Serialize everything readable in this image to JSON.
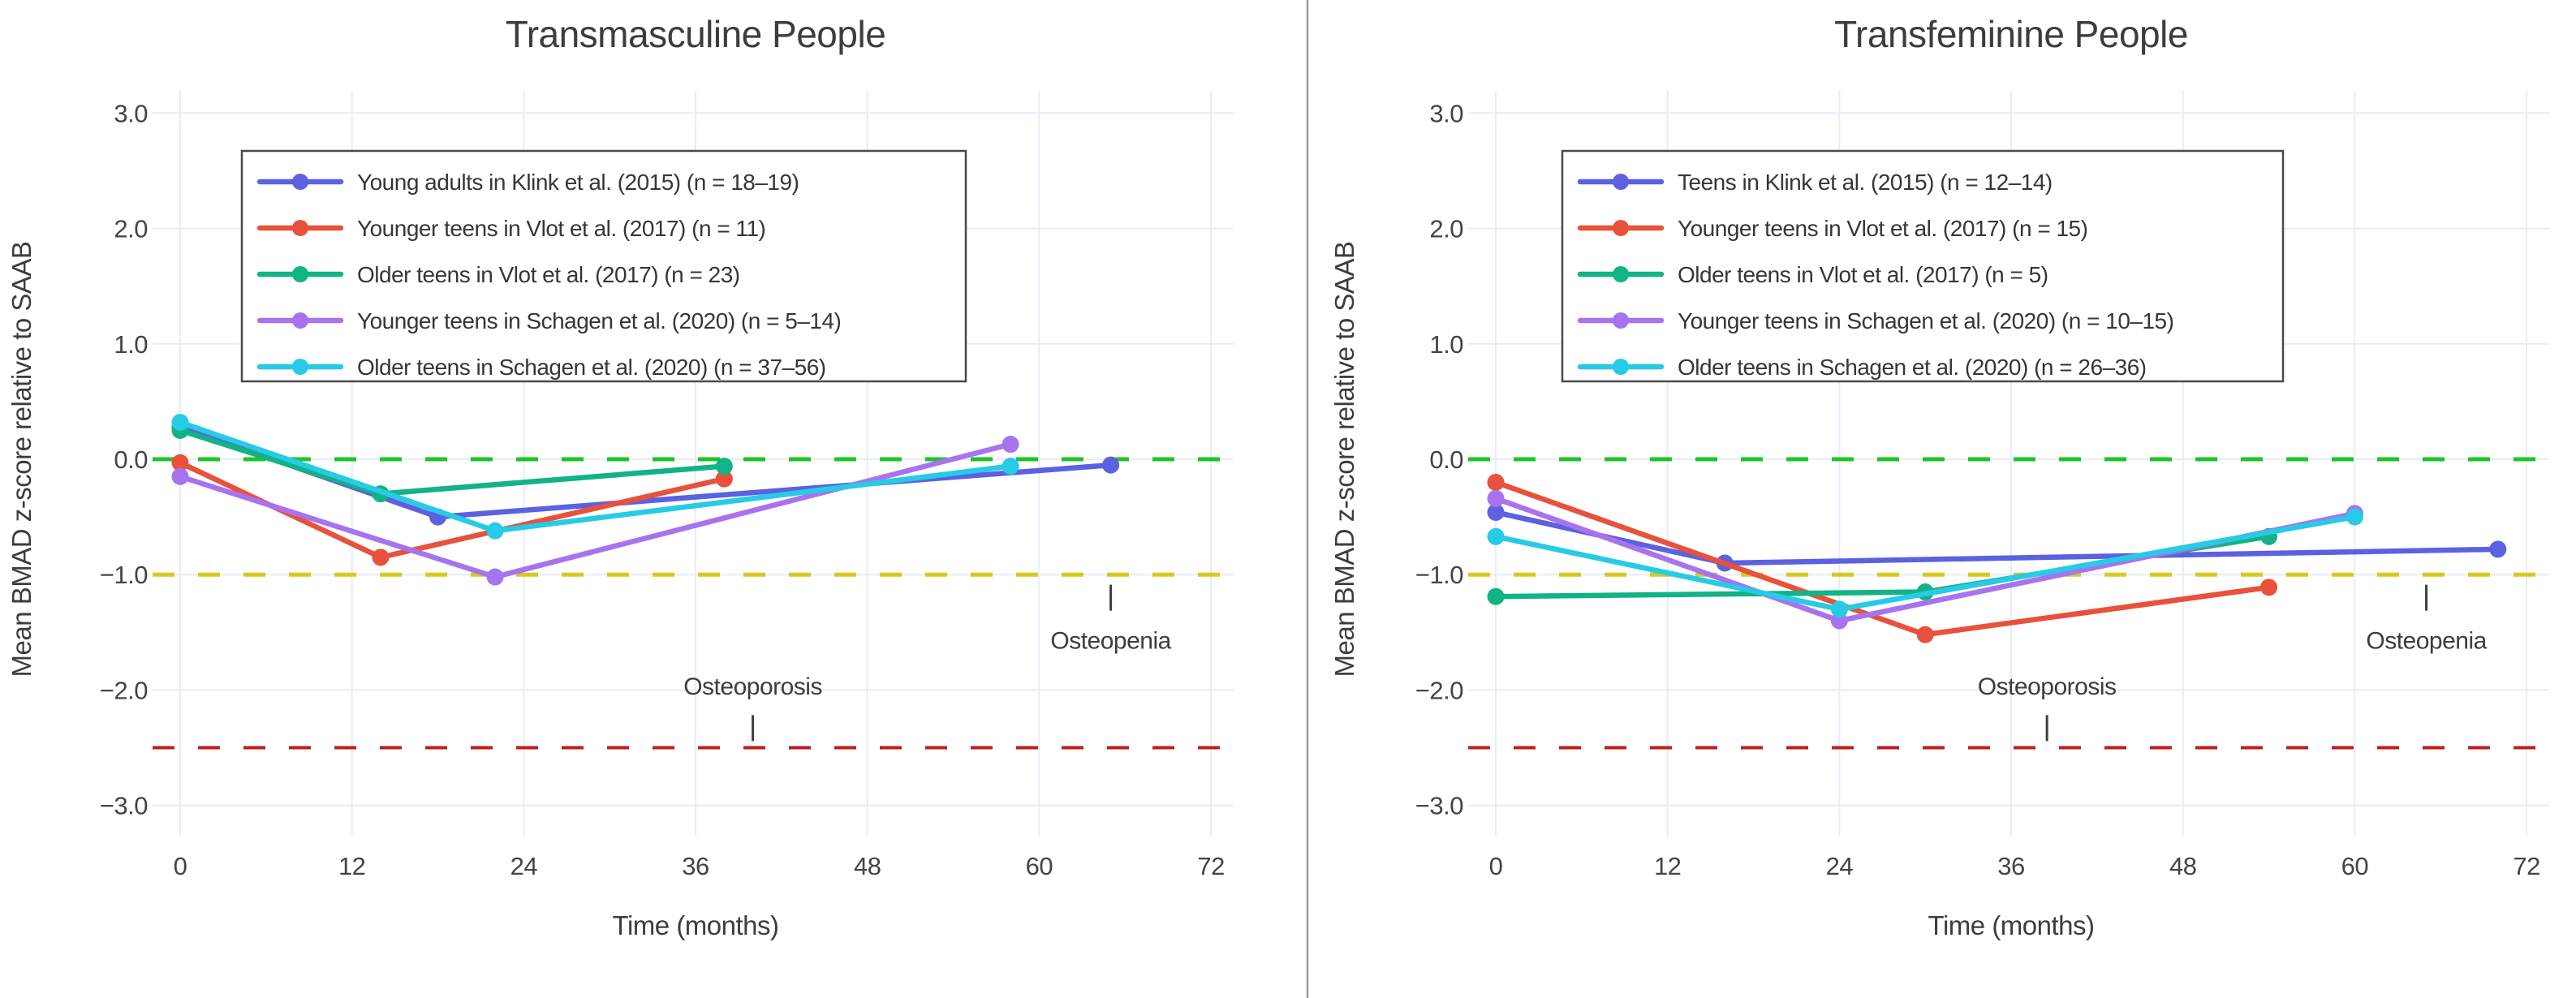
{
  "figure": {
    "background_color": "#ffffff",
    "text_color": "#3d3d3d",
    "gridline_color": "#e7ecf6",
    "divider_color": "#999999",
    "x_axis_title": "Time (months)",
    "y_axis_title": "Mean BMAD z-score relative to SAAB"
  },
  "chart_data": [
    {
      "type": "line",
      "title": "Transmasculine People",
      "xlabel": "Time (months)",
      "ylabel": "Mean BMAD z-score relative to SAAB",
      "xlim": [
        -2,
        74
      ],
      "ylim": [
        -3.25,
        3.25
      ],
      "grid": true,
      "legend_position": "upper-left-inside",
      "x_tick_values": [
        0,
        12,
        24,
        36,
        48,
        60,
        72
      ],
      "x_tick_labels": [
        "0",
        "12",
        "24",
        "36",
        "48",
        "60",
        "72"
      ],
      "y_tick_values": [
        3,
        2,
        1,
        0,
        -1,
        -2,
        -3
      ],
      "y_tick_labels": [
        "3.0",
        "2.0",
        "1.0",
        "0.0",
        "−1.0",
        "−2.0",
        "−3.0"
      ],
      "series": [
        {
          "name": "Young adults in Klink et al. (2015) (n = 18–19)",
          "color": "#5b61e0",
          "points": [
            [
              0,
              0.28
            ],
            [
              18,
              -0.5
            ],
            [
              65,
              -0.05
            ]
          ]
        },
        {
          "name": "Younger teens in Vlot et al. (2017) (n = 11)",
          "color": "#e8513b",
          "points": [
            [
              0,
              -0.03
            ],
            [
              14,
              -0.85
            ],
            [
              38,
              -0.17
            ]
          ]
        },
        {
          "name": "Older teens in Vlot et al. (2017) (n = 23)",
          "color": "#12b384",
          "points": [
            [
              0,
              0.25
            ],
            [
              14,
              -0.3
            ],
            [
              38,
              -0.06
            ]
          ]
        },
        {
          "name": "Younger teens in Schagen et al. (2020) (n = 5–14)",
          "color": "#a873ef",
          "points": [
            [
              0,
              -0.15
            ],
            [
              22,
              -1.02
            ],
            [
              58,
              0.13
            ]
          ]
        },
        {
          "name": "Older teens in Schagen et al. (2020) (n = 37–56)",
          "color": "#27cbe5",
          "points": [
            [
              0,
              0.32
            ],
            [
              22,
              -0.62
            ],
            [
              58,
              -0.06
            ]
          ]
        }
      ],
      "reference_lines": [
        {
          "value": 0.0,
          "color": "#1ec428",
          "style": "dashed"
        },
        {
          "value": -1.0,
          "color": "#d6ca1d",
          "style": "dashed"
        },
        {
          "value": -2.5,
          "color": "#c01d1d",
          "style": "dashed"
        }
      ],
      "annotations": [
        {
          "text": "Osteopenia",
          "month": 65,
          "text_z": -1.57,
          "tick_z": -1.2,
          "tick_position": "above-text"
        },
        {
          "text": "Osteoporosis",
          "month": 40,
          "text_z": -1.97,
          "tick_z": -2.33,
          "tick_position": "below-text"
        }
      ]
    },
    {
      "type": "line",
      "title": "Transfeminine People",
      "xlabel": "Time (months)",
      "ylabel": "Mean BMAD z-score relative to SAAB",
      "xlim": [
        -2,
        74
      ],
      "ylim": [
        -3.25,
        3.25
      ],
      "grid": true,
      "legend_position": "upper-left-inside",
      "x_tick_values": [
        0,
        12,
        24,
        36,
        48,
        60,
        72
      ],
      "x_tick_labels": [
        "0",
        "12",
        "24",
        "36",
        "48",
        "60",
        "72"
      ],
      "y_tick_values": [
        3,
        2,
        1,
        0,
        -1,
        -2,
        -3
      ],
      "y_tick_labels": [
        "3.0",
        "2.0",
        "1.0",
        "0.0",
        "−1.0",
        "−2.0",
        "−3.0"
      ],
      "series": [
        {
          "name": "Teens in Klink et al. (2015) (n = 12–14)",
          "color": "#5b61e0",
          "points": [
            [
              0,
              -0.46
            ],
            [
              16,
              -0.9
            ],
            [
              70,
              -0.78
            ]
          ]
        },
        {
          "name": "Younger teens in Vlot et al. (2017) (n = 15)",
          "color": "#e8513b",
          "points": [
            [
              0,
              -0.2
            ],
            [
              30,
              -1.52
            ],
            [
              54,
              -1.11
            ]
          ]
        },
        {
          "name": "Older teens in Vlot et al. (2017) (n = 5)",
          "color": "#12b384",
          "points": [
            [
              0,
              -1.19
            ],
            [
              30,
              -1.15
            ],
            [
              54,
              -0.67
            ]
          ]
        },
        {
          "name": "Younger teens in Schagen et al. (2020) (n = 10–15)",
          "color": "#a873ef",
          "points": [
            [
              0,
              -0.34
            ],
            [
              24,
              -1.4
            ],
            [
              60,
              -0.47
            ]
          ]
        },
        {
          "name": "Older teens in Schagen et al. (2020) (n = 26–36)",
          "color": "#27cbe5",
          "points": [
            [
              0,
              -0.67
            ],
            [
              24,
              -1.3
            ],
            [
              60,
              -0.5
            ]
          ]
        }
      ],
      "reference_lines": [
        {
          "value": 0.0,
          "color": "#1ec428",
          "style": "dashed"
        },
        {
          "value": -1.0,
          "color": "#d6ca1d",
          "style": "dashed"
        },
        {
          "value": -2.5,
          "color": "#c01d1d",
          "style": "dashed"
        }
      ],
      "annotations": [
        {
          "text": "Osteopenia",
          "month": 65,
          "text_z": -1.57,
          "tick_z": -1.2,
          "tick_position": "above-text"
        },
        {
          "text": "Osteoporosis",
          "month": 38.5,
          "text_z": -1.97,
          "tick_z": -2.33,
          "tick_position": "below-text"
        }
      ]
    }
  ]
}
